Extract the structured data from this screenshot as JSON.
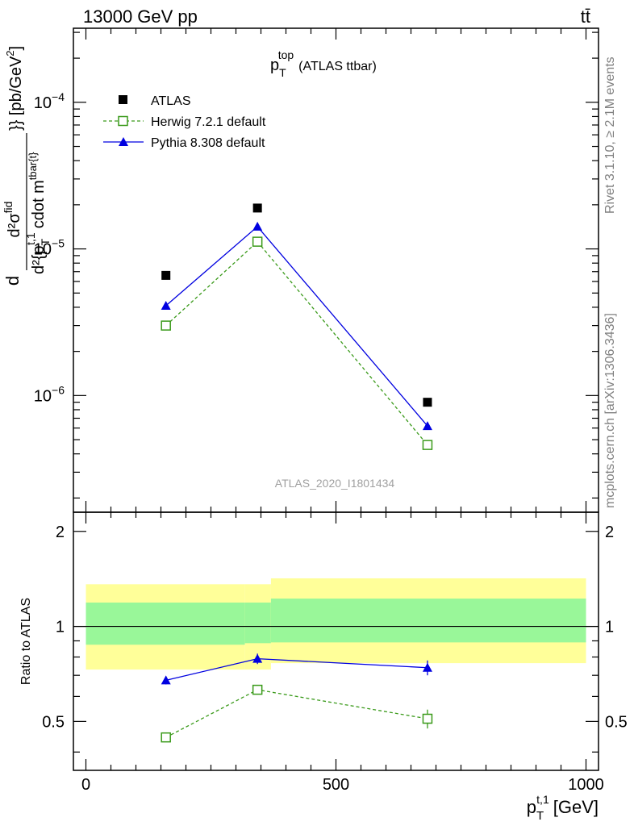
{
  "header": {
    "left": "13000 GeV pp",
    "right": "tt̄"
  },
  "side_labels": {
    "rivet": "Rivet 3.1.10, ≥ 2.1M events",
    "mcplots": "mcplots.cern.ch [arXiv:1306.3436]"
  },
  "colors": {
    "atlas": "#000000",
    "herwig": "#3a9a1a",
    "pythia": "#0000e0",
    "band_inner": "#99f799",
    "band_outer": "#ffff99"
  },
  "chart_data": [
    {
      "type": "scatter",
      "title": "p_T^top (ATLAS ttbar)",
      "title_main": "p",
      "title_sub": "T",
      "title_sup": "top",
      "title_tail": "(ATLAS ttbar)",
      "ylabel": "d²σ^{fid} / d²{p_T^{t,1} cdot m^{tbar{t}}} [pb/GeV²]",
      "ylabel_parts": {
        "numerator": "d²σ",
        "numerator_sup": "fid",
        "denominator": "d²{p",
        "denominator_sub": "T",
        "denominator_sup": "t,1",
        "denominator_tail": "cdot m",
        "denominator_tail_sup": "tbar{t}",
        "closing": "}} [pb/GeV",
        "closing_sup": "2",
        "bracket_end": "]",
        "lead": "d"
      },
      "yscale": "log",
      "ylim": [
        1.6e-07,
        0.00032
      ],
      "xlim": [
        -25,
        1025
      ],
      "y_ticks": [
        {
          "value": 0.0001,
          "base": "10",
          "exp": "−4"
        },
        {
          "value": 1e-05,
          "base": "10",
          "exp": "−5"
        },
        {
          "value": 1e-06,
          "base": "10",
          "exp": "−6"
        }
      ],
      "watermark": "ATLAS_2020_I1801434",
      "legend_position": "top-left",
      "series": [
        {
          "name": "ATLAS",
          "marker": "filled-square",
          "x": [
            160,
            343,
            683
          ],
          "values": [
            6.6e-06,
            1.9e-05,
            9e-07
          ]
        },
        {
          "name": "Herwig 7.2.1 default",
          "marker": "open-square",
          "line": "dashed",
          "x": [
            160,
            343,
            683
          ],
          "values": [
            3e-06,
            1.12e-05,
            4.6e-07
          ]
        },
        {
          "name": "Pythia 8.308 default",
          "marker": "filled-triangle",
          "line": "solid",
          "x": [
            160,
            343,
            683
          ],
          "values": [
            4.1e-06,
            1.42e-05,
            6.2e-07
          ]
        }
      ]
    },
    {
      "type": "scatter",
      "ylabel": "Ratio to ATLAS",
      "xlabel": "p_T^{t,1} [GeV]",
      "xlabel_main": "p",
      "xlabel_sub": "T",
      "xlabel_sup": "t,1",
      "xlabel_tail": "[GeV]",
      "xlim": [
        -25,
        1025
      ],
      "ylim": [
        0.35,
        2.3
      ],
      "x_ticks": [
        {
          "value": 0,
          "label": "0"
        },
        {
          "value": 500,
          "label": "500"
        },
        {
          "value": 1000,
          "label": "1000"
        }
      ],
      "y_ticks": [
        {
          "value": 0.5,
          "label": "0.5"
        },
        {
          "value": 1,
          "label": "1"
        },
        {
          "value": 2,
          "label": "2"
        }
      ],
      "bands": [
        {
          "x": [
            0,
            318
          ],
          "inner": [
            0.875,
            1.19
          ],
          "outer": [
            0.73,
            1.36
          ]
        },
        {
          "x": [
            318,
            370
          ],
          "inner": [
            0.885,
            1.19
          ],
          "outer": [
            0.73,
            1.36
          ]
        },
        {
          "x": [
            370,
            1000
          ],
          "inner": [
            0.89,
            1.225
          ],
          "outer": [
            0.765,
            1.42
          ]
        }
      ],
      "series": [
        {
          "name": "Herwig 7.2.1 default",
          "marker": "open-square",
          "line": "dashed",
          "x": [
            160,
            343,
            683
          ],
          "values": [
            0.445,
            0.63,
            0.51
          ],
          "errors": [
            0.012,
            0.02,
            0.035
          ]
        },
        {
          "name": "Pythia 8.308 default",
          "marker": "filled-triangle",
          "line": "solid",
          "x": [
            160,
            343,
            683
          ],
          "values": [
            0.675,
            0.79,
            0.74
          ],
          "errors": [
            0.02,
            0.03,
            0.04
          ]
        }
      ]
    }
  ]
}
